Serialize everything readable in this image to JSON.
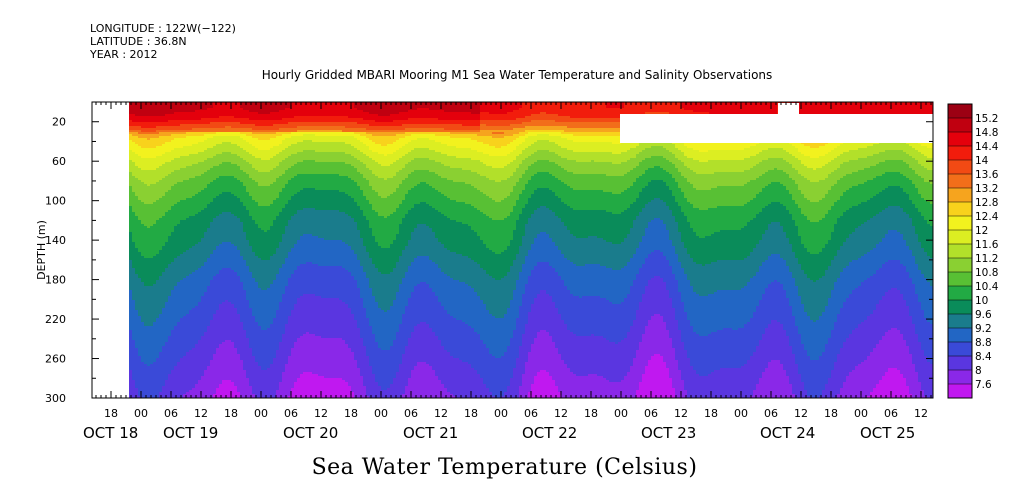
{
  "header": {
    "longitude": "LONGITUDE : 122W(−122)",
    "latitude": "LATITUDE : 36.8N",
    "year": "YEAR : 2012",
    "title": "Hourly Gridded MBARI Mooring M1 Sea Water Temperature and Salinity Observations"
  },
  "chart_data": {
    "type": "heatmap",
    "title": "Hourly Gridded MBARI Mooring M1 Sea Water Temperature and Salinity Observations",
    "xlabel": "",
    "ylabel": "DEPTH (m)",
    "bottom_label": "Sea Water Temperature (Celsius)",
    "y_axis": {
      "reversed": true,
      "ylim": [
        300,
        0
      ],
      "ticks": [
        20,
        60,
        100,
        140,
        180,
        220,
        260,
        300
      ],
      "unit": "m"
    },
    "x_axis": {
      "hour_ticks": [
        "18",
        "00",
        "06",
        "12",
        "18",
        "00",
        "06",
        "12",
        "18",
        "00",
        "06",
        "12",
        "18",
        "00",
        "06",
        "12",
        "18",
        "00",
        "06",
        "12",
        "18",
        "00",
        "06",
        "12",
        "18",
        "00",
        "06",
        "12",
        "18",
        "00",
        "06",
        "12"
      ],
      "day_labels": [
        "OCT 18",
        "OCT 19",
        "OCT 20",
        "OCT 21",
        "OCT 22",
        "OCT 23",
        "OCT 24",
        "OCT 25"
      ]
    },
    "colorbar": {
      "labels": [
        "15.2",
        "14.8",
        "14.4",
        "14",
        "13.6",
        "13.2",
        "12.8",
        "12.4",
        "12",
        "11.6",
        "11.2",
        "10.8",
        "10.4",
        "10",
        "9.6",
        "9.2",
        "8.8",
        "8.4",
        "8",
        "7.6"
      ],
      "colors": [
        "#9c0013",
        "#c00010",
        "#e4000c",
        "#f21c0c",
        "#f24a14",
        "#f26e1a",
        "#f6a41e",
        "#f8d21c",
        "#f2f21e",
        "#dcee22",
        "#b2e02a",
        "#8ad032",
        "#58c034",
        "#22aa44",
        "#0a8c5a",
        "#1a7c8c",
        "#2266c4",
        "#3a4ad8",
        "#5a36e0",
        "#8a28e8",
        "#c018f0"
      ]
    },
    "depth_profile": [
      {
        "depth": 5,
        "temp": 14.4
      },
      {
        "depth": 15,
        "temp": 14.0
      },
      {
        "depth": 25,
        "temp": 13.2
      },
      {
        "depth": 35,
        "temp": 12.2
      },
      {
        "depth": 45,
        "temp": 11.8
      },
      {
        "depth": 60,
        "temp": 11.2
      },
      {
        "depth": 80,
        "temp": 10.6
      },
      {
        "depth": 100,
        "temp": 10.2
      },
      {
        "depth": 120,
        "temp": 9.8
      },
      {
        "depth": 140,
        "temp": 9.6
      },
      {
        "depth": 160,
        "temp": 9.3
      },
      {
        "depth": 180,
        "temp": 9.0
      },
      {
        "depth": 200,
        "temp": 8.8
      },
      {
        "depth": 220,
        "temp": 8.6
      },
      {
        "depth": 240,
        "temp": 8.4
      },
      {
        "depth": 260,
        "temp": 8.2
      },
      {
        "depth": 280,
        "temp": 8.0
      },
      {
        "depth": 300,
        "temp": 7.8
      }
    ]
  },
  "colors": {
    "missing": "#ffffff",
    "axis": "#000000"
  }
}
